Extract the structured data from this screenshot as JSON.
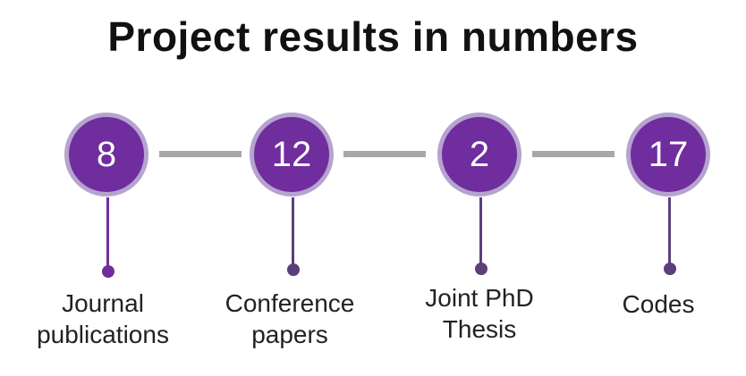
{
  "title": "Project results in numbers",
  "colors": {
    "circle_fill": "#6f2d9e",
    "circle_ring": "#b6a3cf",
    "connector": "#a8a8a8",
    "stem": "#5b3f79",
    "stem_first": "#6f2d9e"
  },
  "items": [
    {
      "value": "8",
      "label_line1": "Journal",
      "label_line2": "publications"
    },
    {
      "value": "12",
      "label_line1": "Conference",
      "label_line2": "papers"
    },
    {
      "value": "2",
      "label_line1": "Joint PhD",
      "label_line2": "Thesis"
    },
    {
      "value": "17",
      "label_line1": "Codes",
      "label_line2": ""
    }
  ]
}
